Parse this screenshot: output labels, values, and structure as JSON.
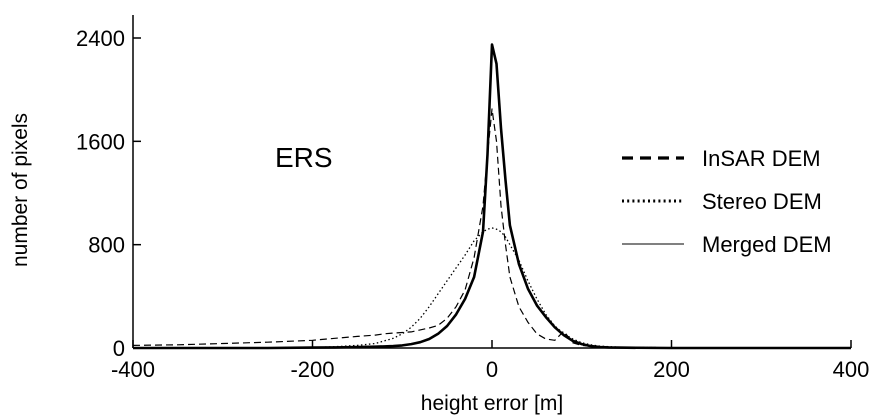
{
  "chart_data": {
    "type": "line",
    "title": "",
    "xlabel": "height error [m]",
    "ylabel": "number of pixels",
    "xlim": [
      -400,
      400
    ],
    "ylim": [
      0,
      2400
    ],
    "xticks": [
      -400,
      -200,
      0,
      200,
      400
    ],
    "xtick_labels": [
      "-400",
      "-200",
      "0",
      "200",
      "400"
    ],
    "yticks": [
      0,
      800,
      1600,
      2400
    ],
    "ytick_labels": [
      "0",
      "800",
      "1600",
      "2400"
    ],
    "grid": false,
    "legend_position": "right",
    "annotation": "ERS",
    "series": [
      {
        "name": "InSAR DEM",
        "style": "dashed",
        "x": [
          -400,
          -350,
          -300,
          -250,
          -200,
          -175,
          -150,
          -130,
          -120,
          -110,
          -100,
          -90,
          -80,
          -70,
          -60,
          -50,
          -40,
          -30,
          -20,
          -10,
          -5,
          0,
          5,
          10,
          15,
          20,
          30,
          40,
          50,
          60,
          70,
          80,
          90,
          100,
          110,
          120,
          130,
          150,
          200,
          250,
          300,
          350,
          400
        ],
        "y": [
          20,
          25,
          35,
          45,
          60,
          75,
          90,
          100,
          110,
          115,
          120,
          125,
          140,
          155,
          175,
          230,
          320,
          450,
          700,
          1100,
          1500,
          1850,
          1600,
          1100,
          800,
          550,
          320,
          200,
          110,
          70,
          60,
          130,
          40,
          20,
          15,
          10,
          8,
          5,
          3,
          2,
          2,
          2,
          2
        ]
      },
      {
        "name": "Stereo DEM",
        "style": "dotted",
        "x": [
          -400,
          -350,
          -300,
          -250,
          -200,
          -175,
          -150,
          -130,
          -120,
          -110,
          -100,
          -90,
          -80,
          -70,
          -60,
          -50,
          -40,
          -30,
          -20,
          -10,
          -5,
          0,
          5,
          10,
          15,
          20,
          30,
          40,
          50,
          60,
          70,
          80,
          90,
          100,
          110,
          120,
          130,
          150,
          200,
          250,
          300,
          350,
          400
        ],
        "y": [
          0,
          0,
          0,
          2,
          5,
          10,
          20,
          35,
          55,
          75,
          110,
          160,
          230,
          320,
          420,
          520,
          620,
          720,
          830,
          900,
          920,
          930,
          920,
          900,
          860,
          800,
          680,
          520,
          380,
          260,
          170,
          110,
          70,
          40,
          25,
          15,
          10,
          5,
          2,
          1,
          0,
          0,
          0
        ]
      },
      {
        "name": "Merged DEM",
        "style": "solid",
        "x": [
          -400,
          -350,
          -300,
          -250,
          -200,
          -175,
          -150,
          -130,
          -120,
          -110,
          -100,
          -90,
          -80,
          -70,
          -60,
          -50,
          -40,
          -30,
          -20,
          -10,
          -5,
          0,
          5,
          10,
          15,
          20,
          30,
          40,
          50,
          60,
          70,
          80,
          90,
          100,
          110,
          120,
          130,
          150,
          200,
          250,
          300,
          350,
          400
        ],
        "y": [
          0,
          0,
          0,
          0,
          3,
          5,
          8,
          10,
          12,
          15,
          20,
          30,
          45,
          70,
          110,
          170,
          260,
          380,
          550,
          900,
          1500,
          2350,
          2200,
          1700,
          1300,
          950,
          650,
          460,
          330,
          240,
          160,
          100,
          55,
          30,
          15,
          8,
          5,
          2,
          0,
          0,
          0,
          0,
          0
        ]
      }
    ]
  }
}
